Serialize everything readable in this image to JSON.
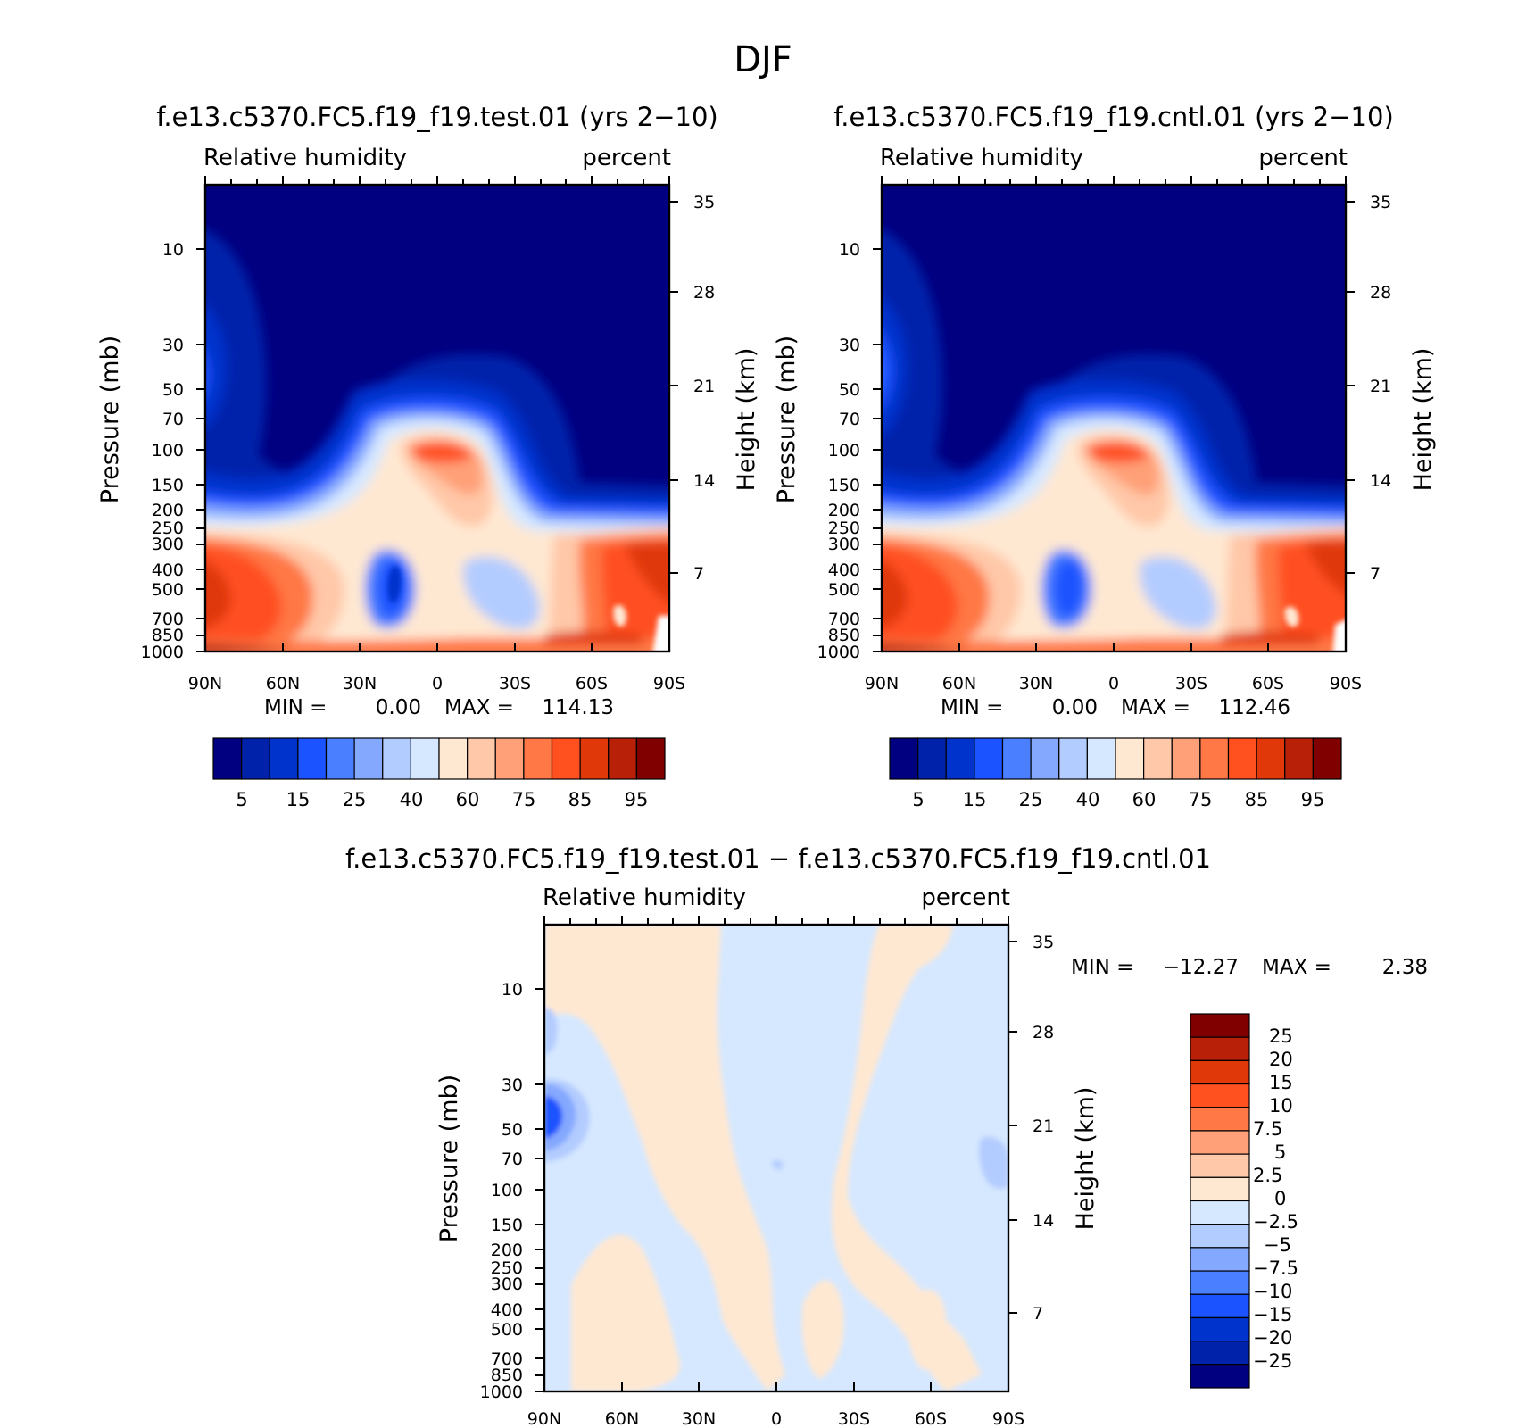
{
  "figure": {
    "title": "DJF"
  },
  "colors": {
    "rh_palette": [
      "#000080",
      "#0022aa",
      "#0033cc",
      "#1a53ff",
      "#4a80ff",
      "#85a8ff",
      "#b3ccff",
      "#d6e8ff",
      "#ffe8d2",
      "#ffc8a8",
      "#ffa078",
      "#ff7845",
      "#ff5020",
      "#e03808",
      "#b82008",
      "#800000"
    ],
    "diff_palette": [
      "#000080",
      "#0022aa",
      "#0033cc",
      "#1a53ff",
      "#4a80ff",
      "#85a8ff",
      "#b3ccff",
      "#d6e8ff",
      "#ffe8d2",
      "#ffc8a8",
      "#ffa078",
      "#ff7845",
      "#ff5020",
      "#e03808",
      "#b82008",
      "#800000"
    ]
  },
  "chart_data": [
    {
      "type": "heatmap",
      "id": "test",
      "title": "f.e13.c5370.FC5.f19_f19.test.01 (yrs 2−10)",
      "left_label": "Relative humidity",
      "right_label": "percent",
      "ylabel": "Pressure (mb)",
      "ylabel_right": "Height (km)",
      "x_ticks": [
        "90N",
        "60N",
        "30N",
        "0",
        "30S",
        "60S",
        "90S"
      ],
      "y_ticks": [
        "10",
        "30",
        "50",
        "70",
        "100",
        "150",
        "200",
        "250",
        "300",
        "400",
        "500",
        "700",
        "850",
        "1000"
      ],
      "y_right_ticks": [
        "35",
        "28",
        "21",
        "14",
        "7"
      ],
      "min_label": "MIN =",
      "min_value": "0.00",
      "max_label": "MAX =",
      "max_value": "114.13",
      "colorbar_labels": [
        "5",
        "15",
        "25",
        "40",
        "60",
        "75",
        "85",
        "95"
      ]
    },
    {
      "type": "heatmap",
      "id": "cntl",
      "title": "f.e13.c5370.FC5.f19_f19.cntl.01 (yrs 2−10)",
      "left_label": "Relative humidity",
      "right_label": "percent",
      "ylabel": "Pressure (mb)",
      "ylabel_right": "Height (km)",
      "x_ticks": [
        "90N",
        "60N",
        "30N",
        "0",
        "30S",
        "60S",
        "90S"
      ],
      "y_ticks": [
        "10",
        "30",
        "50",
        "70",
        "100",
        "150",
        "200",
        "250",
        "300",
        "400",
        "500",
        "700",
        "850",
        "1000"
      ],
      "y_right_ticks": [
        "35",
        "28",
        "21",
        "14",
        "7"
      ],
      "min_label": "MIN =",
      "min_value": "0.00",
      "max_label": "MAX =",
      "max_value": "112.46",
      "colorbar_labels": [
        "5",
        "15",
        "25",
        "40",
        "60",
        "75",
        "85",
        "95"
      ]
    },
    {
      "type": "heatmap",
      "id": "diff",
      "title": "f.e13.c5370.FC5.f19_f19.test.01 − f.e13.c5370.FC5.f19_f19.cntl.01",
      "left_label": "Relative humidity",
      "right_label": "percent",
      "ylabel": "Pressure (mb)",
      "ylabel_right": "Height (km)",
      "x_ticks": [
        "90N",
        "60N",
        "30N",
        "0",
        "30S",
        "60S",
        "90S"
      ],
      "y_ticks": [
        "10",
        "30",
        "50",
        "70",
        "100",
        "150",
        "200",
        "250",
        "300",
        "400",
        "500",
        "700",
        "850",
        "1000"
      ],
      "y_right_ticks": [
        "35",
        "28",
        "21",
        "14",
        "7"
      ],
      "min_label": "MIN =",
      "min_value": "−12.27",
      "max_label": "MAX =",
      "max_value": "2.38",
      "colorbar_labels": [
        "25",
        "20",
        "15",
        "10",
        "7.5",
        "5",
        "2.5",
        "0",
        "−2.5",
        "−5",
        "−7.5",
        "−10",
        "−15",
        "−20",
        "−25"
      ]
    }
  ]
}
